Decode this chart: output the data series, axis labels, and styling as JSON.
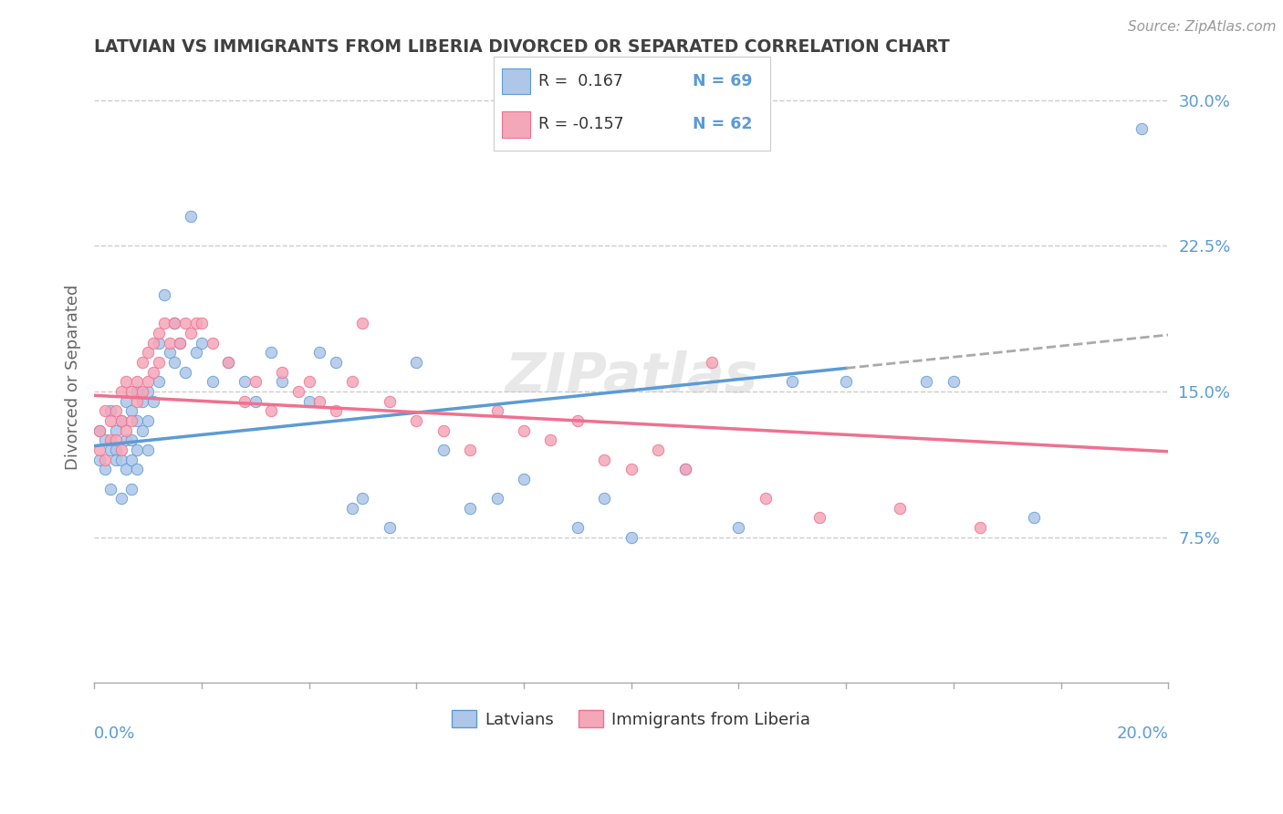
{
  "title": "LATVIAN VS IMMIGRANTS FROM LIBERIA DIVORCED OR SEPARATED CORRELATION CHART",
  "source_text": "Source: ZipAtlas.com",
  "xlabel_bottom_left": "0.0%",
  "xlabel_bottom_right": "20.0%",
  "ylabel": "Divorced or Separated",
  "ylabel_right_ticks": [
    "7.5%",
    "15.0%",
    "22.5%",
    "30.0%"
  ],
  "legend_blue_r": "R =  0.167",
  "legend_blue_n": "N = 69",
  "legend_pink_r": "R = -0.157",
  "legend_pink_n": "N = 62",
  "legend_bottom_blue": "Latvians",
  "legend_bottom_pink": "Immigrants from Liberia",
  "blue_color": "#AEC6E8",
  "pink_color": "#F4A7B9",
  "blue_line_color": "#5B9BD5",
  "pink_line_color": "#F07090",
  "dashed_line_color": "#AAAAAA",
  "title_color": "#404040",
  "axis_color": "#5B9BD5",
  "background_color": "#FFFFFF",
  "grid_color": "#CCCCCC",
  "x_min": 0.0,
  "x_max": 0.2,
  "y_min": 0.0,
  "y_max": 0.315,
  "blue_x": [
    0.001,
    0.001,
    0.002,
    0.002,
    0.003,
    0.003,
    0.003,
    0.004,
    0.004,
    0.004,
    0.005,
    0.005,
    0.005,
    0.006,
    0.006,
    0.006,
    0.007,
    0.007,
    0.007,
    0.007,
    0.008,
    0.008,
    0.008,
    0.008,
    0.009,
    0.009,
    0.01,
    0.01,
    0.01,
    0.011,
    0.012,
    0.012,
    0.013,
    0.014,
    0.015,
    0.015,
    0.016,
    0.017,
    0.018,
    0.019,
    0.02,
    0.022,
    0.025,
    0.028,
    0.03,
    0.033,
    0.035,
    0.04,
    0.042,
    0.045,
    0.048,
    0.05,
    0.055,
    0.06,
    0.065,
    0.07,
    0.075,
    0.08,
    0.09,
    0.095,
    0.1,
    0.11,
    0.12,
    0.13,
    0.14,
    0.155,
    0.16,
    0.175,
    0.195
  ],
  "blue_y": [
    0.115,
    0.13,
    0.125,
    0.11,
    0.14,
    0.12,
    0.1,
    0.13,
    0.12,
    0.115,
    0.135,
    0.115,
    0.095,
    0.145,
    0.125,
    0.11,
    0.14,
    0.125,
    0.115,
    0.1,
    0.15,
    0.135,
    0.12,
    0.11,
    0.145,
    0.13,
    0.15,
    0.135,
    0.12,
    0.145,
    0.175,
    0.155,
    0.2,
    0.17,
    0.185,
    0.165,
    0.175,
    0.16,
    0.24,
    0.17,
    0.175,
    0.155,
    0.165,
    0.155,
    0.145,
    0.17,
    0.155,
    0.145,
    0.17,
    0.165,
    0.09,
    0.095,
    0.08,
    0.165,
    0.12,
    0.09,
    0.095,
    0.105,
    0.08,
    0.095,
    0.075,
    0.11,
    0.08,
    0.155,
    0.155,
    0.155,
    0.155,
    0.085,
    0.285
  ],
  "pink_x": [
    0.001,
    0.001,
    0.002,
    0.002,
    0.003,
    0.003,
    0.004,
    0.004,
    0.005,
    0.005,
    0.005,
    0.006,
    0.006,
    0.007,
    0.007,
    0.008,
    0.008,
    0.009,
    0.009,
    0.01,
    0.01,
    0.011,
    0.011,
    0.012,
    0.012,
    0.013,
    0.014,
    0.015,
    0.016,
    0.017,
    0.018,
    0.019,
    0.02,
    0.022,
    0.025,
    0.028,
    0.03,
    0.033,
    0.035,
    0.038,
    0.04,
    0.042,
    0.045,
    0.048,
    0.05,
    0.055,
    0.06,
    0.065,
    0.07,
    0.075,
    0.08,
    0.085,
    0.09,
    0.095,
    0.1,
    0.105,
    0.11,
    0.115,
    0.125,
    0.135,
    0.15,
    0.165
  ],
  "pink_y": [
    0.13,
    0.12,
    0.14,
    0.115,
    0.135,
    0.125,
    0.14,
    0.125,
    0.15,
    0.135,
    0.12,
    0.155,
    0.13,
    0.15,
    0.135,
    0.155,
    0.145,
    0.165,
    0.15,
    0.17,
    0.155,
    0.175,
    0.16,
    0.18,
    0.165,
    0.185,
    0.175,
    0.185,
    0.175,
    0.185,
    0.18,
    0.185,
    0.185,
    0.175,
    0.165,
    0.145,
    0.155,
    0.14,
    0.16,
    0.15,
    0.155,
    0.145,
    0.14,
    0.155,
    0.185,
    0.145,
    0.135,
    0.13,
    0.12,
    0.14,
    0.13,
    0.125,
    0.135,
    0.115,
    0.11,
    0.12,
    0.11,
    0.165,
    0.095,
    0.085,
    0.09,
    0.08
  ]
}
